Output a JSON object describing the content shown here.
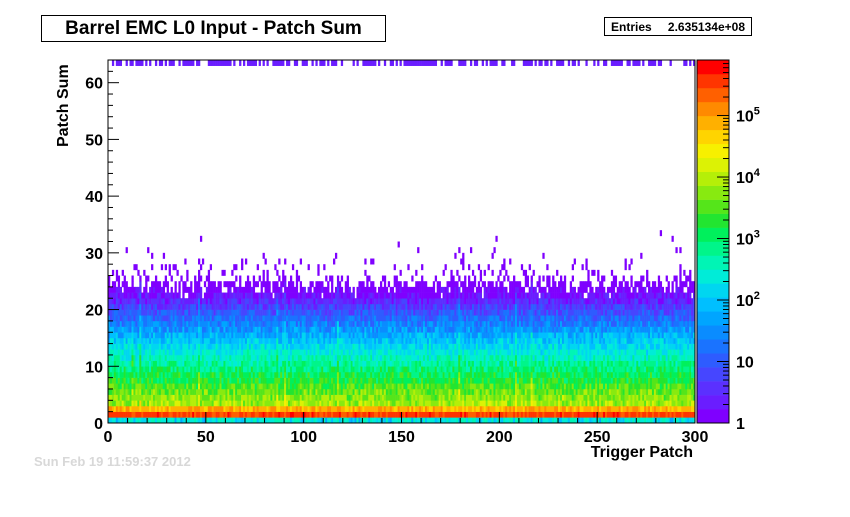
{
  "chart_data": {
    "type": "heatmap",
    "title": "Barrel EMC L0 Input - Patch Sum",
    "xlabel": "Trigger Patch",
    "ylabel": "Patch Sum",
    "xlim": [
      0,
      300
    ],
    "ylim": [
      0,
      64
    ],
    "x_ticks": [
      0,
      50,
      100,
      150,
      200,
      250,
      300
    ],
    "y_ticks": [
      0,
      10,
      20,
      30,
      40,
      50,
      60
    ],
    "z_scale": "log",
    "z_range": [
      1,
      800000
    ],
    "z_ticks": [
      {
        "value": 1,
        "label": "1"
      },
      {
        "value": 10,
        "label": "10"
      },
      {
        "value": 100,
        "base": "10",
        "exp": "2"
      },
      {
        "value": 1000,
        "base": "10",
        "exp": "3"
      },
      {
        "value": 10000,
        "base": "10",
        "exp": "4"
      },
      {
        "value": 100000,
        "base": "10",
        "exp": "5"
      }
    ],
    "palette": [
      "#7f00ff",
      "#6a1dff",
      "#5b30ff",
      "#4646ff",
      "#2e5cff",
      "#1a73ff",
      "#0a8cff",
      "#00a5ff",
      "#00bfff",
      "#00d6f0",
      "#00ecd8",
      "#00f5b5",
      "#00f58a",
      "#00f05c",
      "#22e530",
      "#55e51a",
      "#88ea10",
      "#b5ef08",
      "#dcf205",
      "#f7f000",
      "#ffd400",
      "#ffb000",
      "#ff8a00",
      "#ff6000",
      "#ff3500",
      "#ff0000"
    ],
    "distribution_note": "",
    "stats": {
      "label": "Entries",
      "value": "2.635134e+08"
    }
  },
  "footer": {
    "timestamp": "Sun Feb 19 11:59:37 2012"
  }
}
